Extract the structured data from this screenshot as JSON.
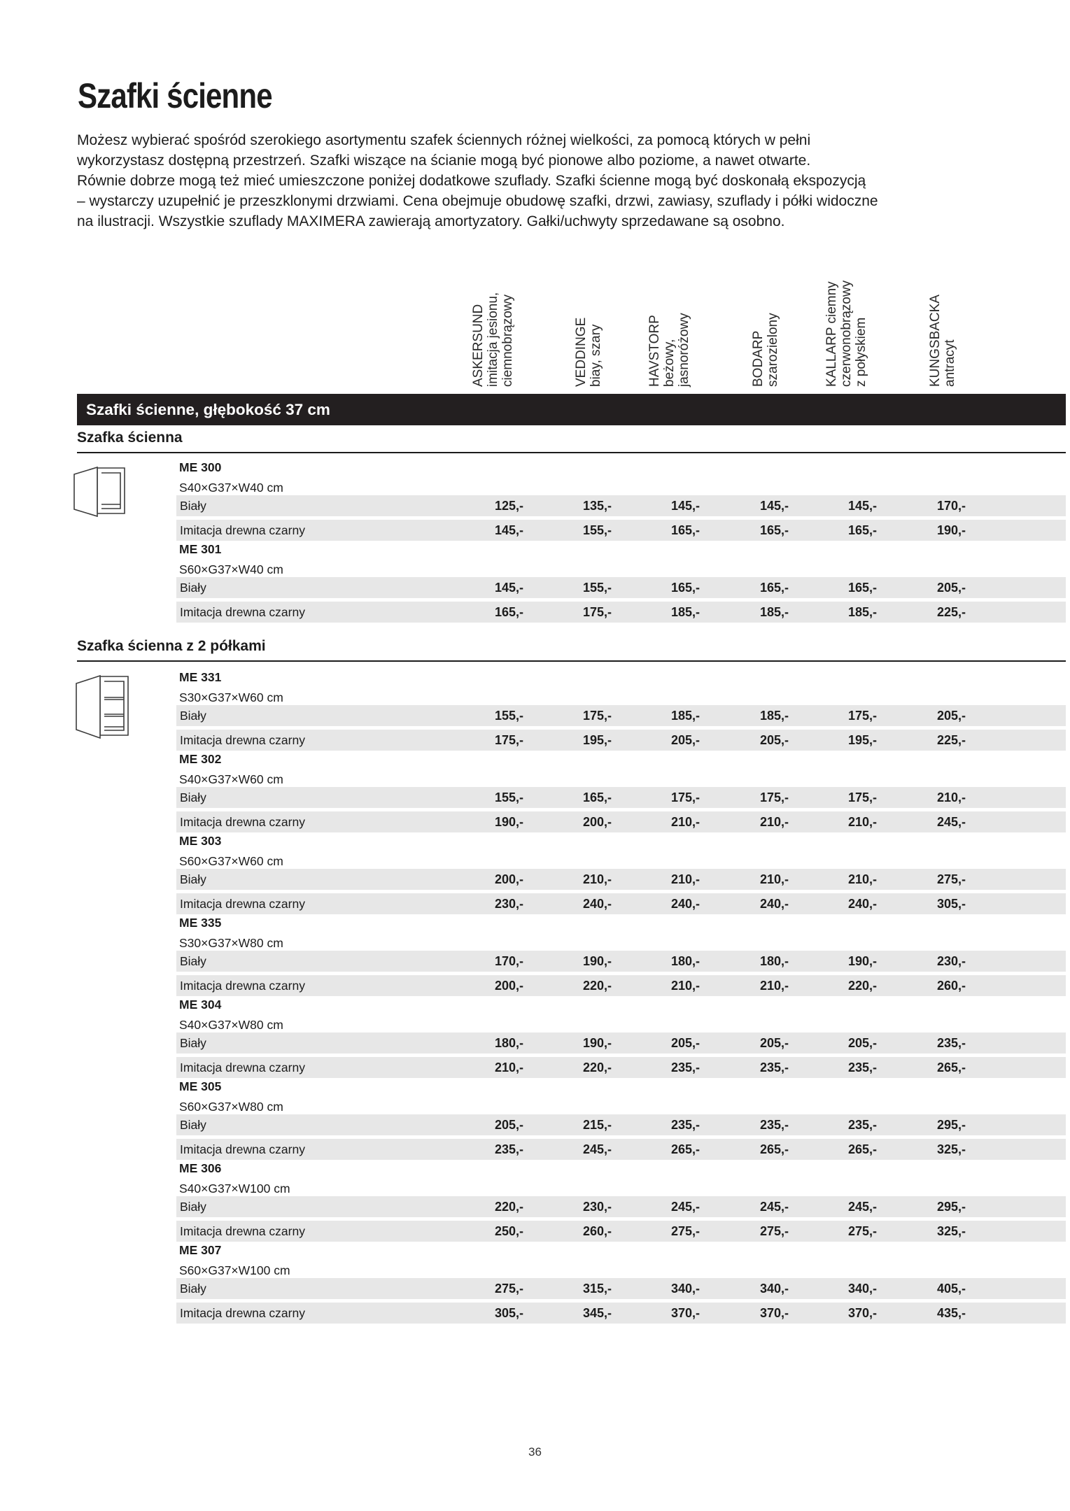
{
  "page": {
    "title": "Szafki ścienne",
    "page_number": "36"
  },
  "intro_lines": [
    "Możesz wybierać spośród szerokiego asortymentu szafek ściennych różnej wielkości, za pomocą których w pełni",
    "wykorzystasz dostępną przestrzeń. Szafki wiszące na ścianie mogą być pionowe albo poziome, a nawet otwarte.",
    "Równie dobrze mogą też mieć umieszczone poniżej dodatkowe szuflady. Szafki ścienne mogą być doskonałą ekspozycją",
    "– wystarczy uzupełnić je przeszklonymi drzwiami. Cena obejmuje obudowę szafki, drzwi, zawiasy, szuflady i półki widoczne",
    "na ilustracji. Wszystkie szuflady MAXIMERA zawierają amortyzatory. Gałki/uchwyty sprzedawane są osobno."
  ],
  "band": {
    "label": "Szafki ścienne, głębokość 37 cm"
  },
  "column_headers": [
    {
      "name": "askersund",
      "lines": [
        "ASKERSUND",
        "imitacja jesionu,",
        "ciemnobrązowy"
      ]
    },
    {
      "name": "veddinge",
      "lines": [
        "VEDDINGE",
        "biay, szary"
      ]
    },
    {
      "name": "havstorp",
      "lines": [
        "HAVSTORP",
        "beżowy,",
        "jasnoróżowy"
      ]
    },
    {
      "name": "bodarp",
      "lines": [
        "BODARP",
        "szarozielony"
      ]
    },
    {
      "name": "kallarp",
      "lines": [
        "KALLARP ciemny",
        "czerwonobrązowy",
        "z połyskiem"
      ]
    },
    {
      "name": "kungsbacka",
      "lines": [
        "KUNGSBACKA",
        "antracyt"
      ]
    }
  ],
  "sections": [
    {
      "label": "Szafka ścienna",
      "icon": "wall-cabinet-open-door",
      "products": [
        {
          "code": "ME 300",
          "size": "S40×G37×W40 cm",
          "rows": [
            {
              "label": "Biały",
              "prices": [
                "125,-",
                "135,-",
                "145,-",
                "145,-",
                "145,-",
                "170,-"
              ]
            },
            {
              "label": "Imitacja drewna czarny",
              "prices": [
                "145,-",
                "155,-",
                "165,-",
                "165,-",
                "165,-",
                "190,-"
              ]
            }
          ]
        },
        {
          "code": "ME 301",
          "size": "S60×G37×W40 cm",
          "rows": [
            {
              "label": "Biały",
              "prices": [
                "145,-",
                "155,-",
                "165,-",
                "165,-",
                "165,-",
                "205,-"
              ]
            },
            {
              "label": "Imitacja drewna czarny",
              "prices": [
                "165,-",
                "175,-",
                "185,-",
                "185,-",
                "185,-",
                "225,-"
              ]
            }
          ]
        }
      ]
    },
    {
      "label": "Szafka ścienna z 2 półkami",
      "icon": "wall-cabinet-open-door-2-shelves",
      "products": [
        {
          "code": "ME 331",
          "size": "S30×G37×W60 cm",
          "rows": [
            {
              "label": "Biały",
              "prices": [
                "155,-",
                "175,-",
                "185,-",
                "185,-",
                "175,-",
                "205,-"
              ]
            },
            {
              "label": "Imitacja drewna czarny",
              "prices": [
                "175,-",
                "195,-",
                "205,-",
                "205,-",
                "195,-",
                "225,-"
              ]
            }
          ]
        },
        {
          "code": "ME 302",
          "size": "S40×G37×W60 cm",
          "rows": [
            {
              "label": "Biały",
              "prices": [
                "155,-",
                "165,-",
                "175,-",
                "175,-",
                "175,-",
                "210,-"
              ]
            },
            {
              "label": "Imitacja drewna czarny",
              "prices": [
                "190,-",
                "200,-",
                "210,-",
                "210,-",
                "210,-",
                "245,-"
              ]
            }
          ]
        },
        {
          "code": "ME 303",
          "size": "S60×G37×W60 cm",
          "rows": [
            {
              "label": "Biały",
              "prices": [
                "200,-",
                "210,-",
                "210,-",
                "210,-",
                "210,-",
                "275,-"
              ]
            },
            {
              "label": "Imitacja drewna czarny",
              "prices": [
                "230,-",
                "240,-",
                "240,-",
                "240,-",
                "240,-",
                "305,-"
              ]
            }
          ]
        },
        {
          "code": "ME 335",
          "size": "S30×G37×W80 cm",
          "rows": [
            {
              "label": "Biały",
              "prices": [
                "170,-",
                "190,-",
                "180,-",
                "180,-",
                "190,-",
                "230,-"
              ]
            },
            {
              "label": "Imitacja drewna czarny",
              "prices": [
                "200,-",
                "220,-",
                "210,-",
                "210,-",
                "220,-",
                "260,-"
              ]
            }
          ]
        },
        {
          "code": "ME 304",
          "size": "S40×G37×W80 cm",
          "rows": [
            {
              "label": "Biały",
              "prices": [
                "180,-",
                "190,-",
                "205,-",
                "205,-",
                "205,-",
                "235,-"
              ]
            },
            {
              "label": "Imitacja drewna czarny",
              "prices": [
                "210,-",
                "220,-",
                "235,-",
                "235,-",
                "235,-",
                "265,-"
              ]
            }
          ]
        },
        {
          "code": "ME 305",
          "size": "S60×G37×W80 cm",
          "rows": [
            {
              "label": "Biały",
              "prices": [
                "205,-",
                "215,-",
                "235,-",
                "235,-",
                "235,-",
                "295,-"
              ]
            },
            {
              "label": "Imitacja drewna czarny",
              "prices": [
                "235,-",
                "245,-",
                "265,-",
                "265,-",
                "265,-",
                "325,-"
              ]
            }
          ]
        },
        {
          "code": "ME 306",
          "size": "S40×G37×W100 cm",
          "rows": [
            {
              "label": "Biały",
              "prices": [
                "220,-",
                "230,-",
                "245,-",
                "245,-",
                "245,-",
                "295,-"
              ]
            },
            {
              "label": "Imitacja drewna czarny",
              "prices": [
                "250,-",
                "260,-",
                "275,-",
                "275,-",
                "275,-",
                "325,-"
              ]
            }
          ]
        },
        {
          "code": "ME 307",
          "size": "S60×G37×W100 cm",
          "rows": [
            {
              "label": "Biały",
              "prices": [
                "275,-",
                "315,-",
                "340,-",
                "340,-",
                "340,-",
                "405,-"
              ]
            },
            {
              "label": "Imitacja drewna czarny",
              "prices": [
                "305,-",
                "345,-",
                "370,-",
                "370,-",
                "370,-",
                "435,-"
              ]
            }
          ]
        }
      ]
    }
  ],
  "colors": {
    "band_background": "#231f20",
    "row_background": "#e7e7e7",
    "text": "#1c1c1c"
  }
}
